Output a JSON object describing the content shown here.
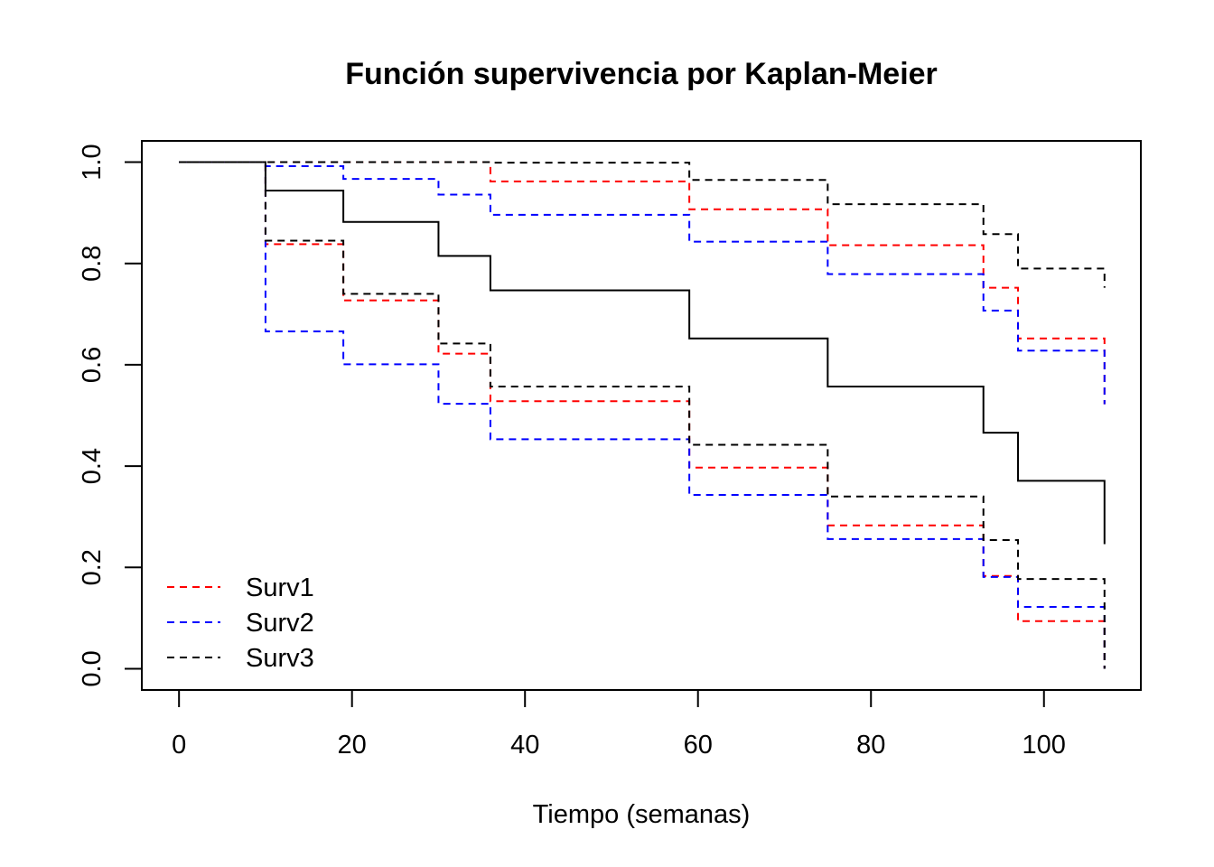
{
  "chart_data": {
    "type": "line",
    "step": true,
    "title": "Función supervivencia por Kaplan-Meier",
    "xlabel": "Tiempo (semanas)",
    "ylabel": "",
    "xlim": [
      -4.3,
      111.2
    ],
    "ylim": [
      -0.042,
      1.042
    ],
    "xticks": [
      0,
      20,
      40,
      60,
      80,
      100
    ],
    "yticks": [
      0.0,
      0.2,
      0.4,
      0.6,
      0.8,
      1.0
    ],
    "xtick_labels": [
      "0",
      "20",
      "40",
      "60",
      "80",
      "100"
    ],
    "ytick_labels": [
      "0.0",
      "0.2",
      "0.4",
      "0.6",
      "0.8",
      "1.0"
    ],
    "grid": false,
    "legend_position": "bottom-left",
    "x_end": 107,
    "series": [
      {
        "style": "solid",
        "color": "#000000",
        "in_legend": false,
        "steps": [
          [
            0,
            1.0
          ],
          [
            10,
            0.944
          ],
          [
            19,
            0.882
          ],
          [
            30,
            0.815
          ],
          [
            36,
            0.747
          ],
          [
            59,
            0.652
          ],
          [
            75,
            0.557
          ],
          [
            93,
            0.466
          ],
          [
            97,
            0.371
          ],
          [
            107,
            0.246
          ]
        ]
      },
      {
        "name": "Surv1",
        "style": "dashed",
        "color": "#ff0000",
        "in_legend": true,
        "upper": [
          [
            0,
            1.0
          ],
          [
            10,
            1.0
          ],
          [
            19,
            1.0
          ],
          [
            30,
            1.0
          ],
          [
            36,
            0.962
          ],
          [
            59,
            0.907
          ],
          [
            75,
            0.836
          ],
          [
            93,
            0.752
          ],
          [
            97,
            0.652
          ],
          [
            107,
            0.522
          ]
        ],
        "lower": [
          [
            0,
            1.0
          ],
          [
            10,
            0.838
          ],
          [
            19,
            0.727
          ],
          [
            30,
            0.622
          ],
          [
            36,
            0.528
          ],
          [
            59,
            0.397
          ],
          [
            75,
            0.283
          ],
          [
            93,
            0.183
          ],
          [
            97,
            0.094
          ],
          [
            107,
            0.0
          ]
        ]
      },
      {
        "name": "Surv2",
        "style": "dashed",
        "color": "#0000ff",
        "in_legend": true,
        "upper": [
          [
            0,
            1.0
          ],
          [
            10,
            0.992
          ],
          [
            19,
            0.967
          ],
          [
            30,
            0.936
          ],
          [
            36,
            0.896
          ],
          [
            59,
            0.843
          ],
          [
            75,
            0.779
          ],
          [
            93,
            0.707
          ],
          [
            97,
            0.628
          ],
          [
            107,
            0.522
          ]
        ],
        "lower": [
          [
            0,
            1.0
          ],
          [
            10,
            0.666
          ],
          [
            19,
            0.601
          ],
          [
            30,
            0.523
          ],
          [
            36,
            0.453
          ],
          [
            59,
            0.343
          ],
          [
            75,
            0.256
          ],
          [
            93,
            0.181
          ],
          [
            97,
            0.122
          ],
          [
            107,
            0.0
          ]
        ]
      },
      {
        "name": "Surv3",
        "style": "dashed",
        "color": "#000000",
        "in_legend": true,
        "upper": [
          [
            0,
            1.0
          ],
          [
            10,
            1.0
          ],
          [
            19,
            1.0
          ],
          [
            30,
            1.0
          ],
          [
            36,
            0.999
          ],
          [
            59,
            0.965
          ],
          [
            75,
            0.917
          ],
          [
            93,
            0.858
          ],
          [
            97,
            0.79
          ],
          [
            107,
            0.752
          ]
        ],
        "lower": [
          [
            0,
            1.0
          ],
          [
            10,
            0.845
          ],
          [
            19,
            0.74
          ],
          [
            30,
            0.642
          ],
          [
            36,
            0.557
          ],
          [
            59,
            0.442
          ],
          [
            75,
            0.34
          ],
          [
            93,
            0.254
          ],
          [
            97,
            0.177
          ],
          [
            107,
            0.0
          ]
        ]
      }
    ]
  }
}
